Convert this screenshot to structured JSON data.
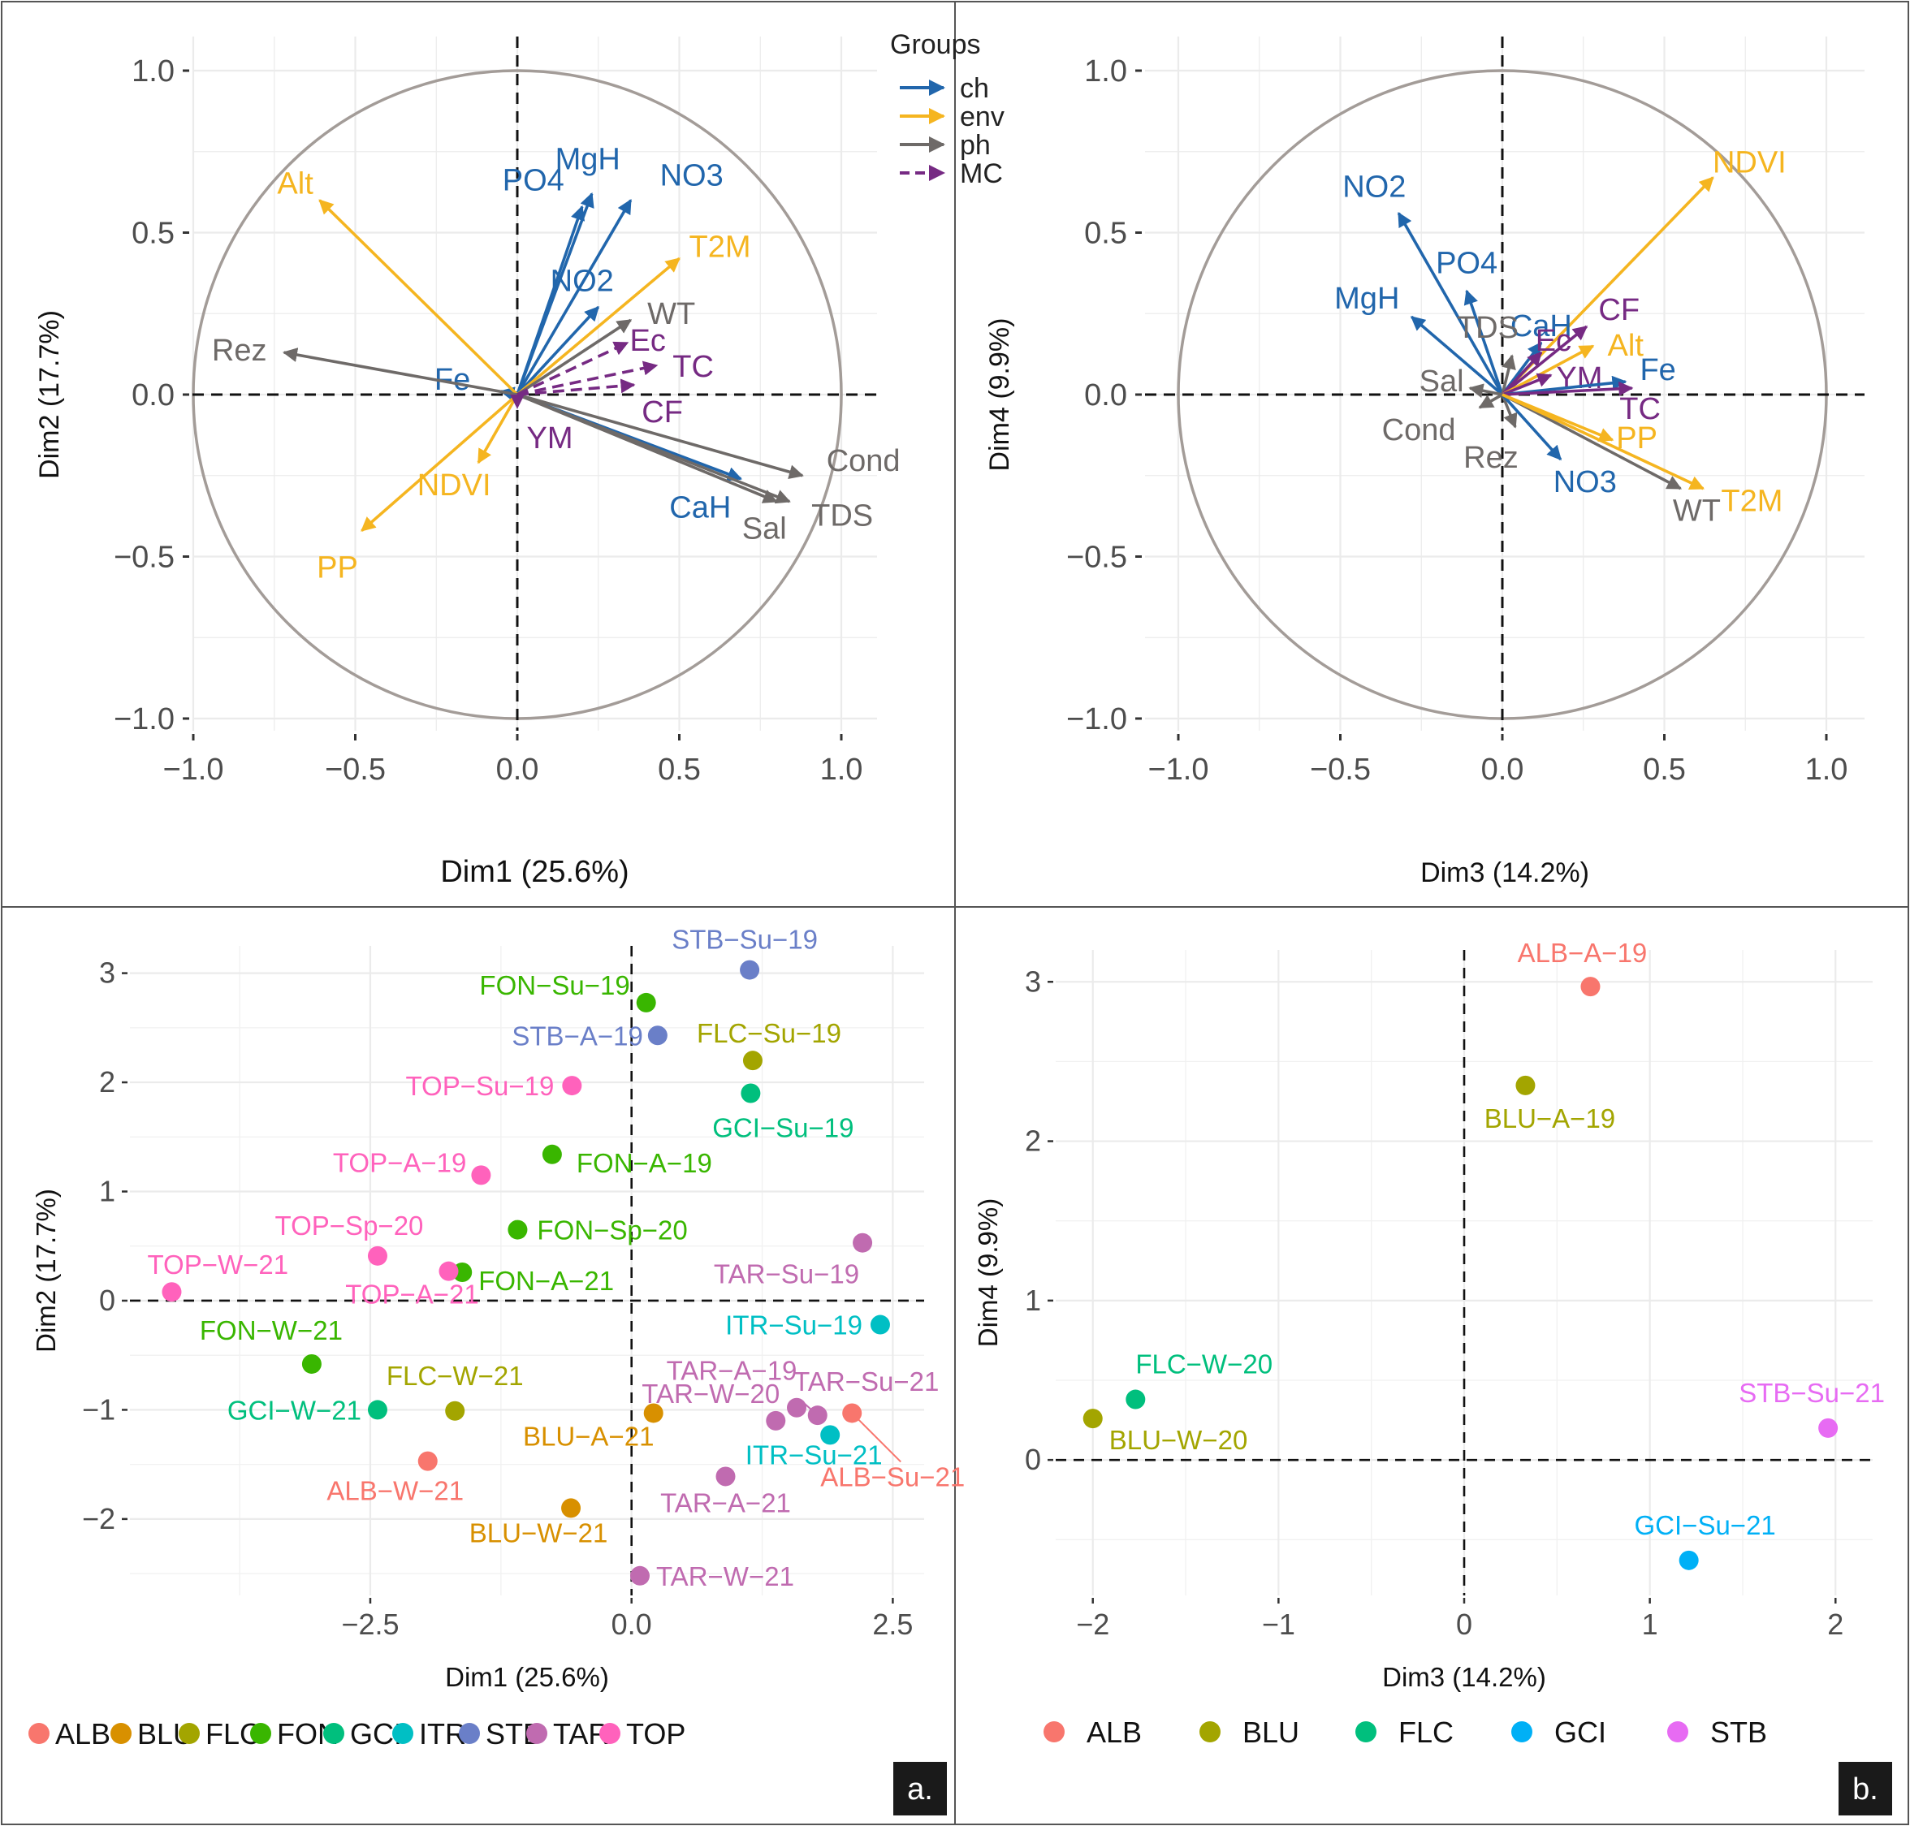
{
  "panel_tags": [
    "a.",
    "b."
  ],
  "chart_data": [
    {
      "id": "corr-dim1-dim2",
      "type": "scatter",
      "subtype": "correlation-circle",
      "xlabel": "Dim1 (25.6%)",
      "ylabel": "Dim2 (17.7%)",
      "xlim": [
        -1.0,
        1.0
      ],
      "ylim": [
        -1.0,
        1.0
      ],
      "xticks": [
        "−1.0",
        "−0.5",
        "0.0",
        "0.5",
        "1.0"
      ],
      "xtick_values": [
        -1.0,
        -0.5,
        0.0,
        0.5,
        1.0
      ],
      "yticks": [
        "1.0",
        "0.5",
        "0.0",
        "−0.5",
        "−1.0"
      ],
      "ytick_values": [
        1.0,
        0.5,
        0.0,
        -0.5,
        -1.0
      ],
      "legend": {
        "title": "Groups",
        "entries": [
          {
            "label": "ch",
            "color": "#2166ac",
            "style": "solid"
          },
          {
            "label": "env",
            "color": "#f5b520",
            "style": "solid"
          },
          {
            "label": "ph",
            "color": "#6e6a68",
            "style": "solid"
          },
          {
            "label": "MC",
            "color": "#762a83",
            "style": "dashed"
          }
        ]
      },
      "vectors": [
        {
          "label": "MgH",
          "group": "ch",
          "x": 0.23,
          "y": 0.62
        },
        {
          "label": "PO4",
          "group": "ch",
          "x": 0.2,
          "y": 0.58
        },
        {
          "label": "NO3",
          "group": "ch",
          "x": 0.35,
          "y": 0.6
        },
        {
          "label": "NO2",
          "group": "ch",
          "x": 0.25,
          "y": 0.27
        },
        {
          "label": "Fe",
          "group": "ch",
          "x": -0.05,
          "y": 0.01
        },
        {
          "label": "CaH",
          "group": "ch",
          "x": 0.69,
          "y": -0.26
        },
        {
          "label": "Alt",
          "group": "env",
          "x": -0.61,
          "y": 0.6
        },
        {
          "label": "T2M",
          "group": "env",
          "x": 0.5,
          "y": 0.42
        },
        {
          "label": "NDVI",
          "group": "env",
          "x": -0.12,
          "y": -0.21
        },
        {
          "label": "PP",
          "group": "env",
          "x": -0.48,
          "y": -0.42
        },
        {
          "label": "Rez",
          "group": "ph",
          "x": -0.72,
          "y": 0.13
        },
        {
          "label": "WT",
          "group": "ph",
          "x": 0.35,
          "y": 0.23
        },
        {
          "label": "Cond",
          "group": "ph",
          "x": 0.88,
          "y": -0.25
        },
        {
          "label": "TDS",
          "group": "ph",
          "x": 0.84,
          "y": -0.33
        },
        {
          "label": "Sal",
          "group": "ph",
          "x": 0.8,
          "y": -0.33
        },
        {
          "label": "Ec",
          "group": "MC",
          "x": 0.34,
          "y": 0.16
        },
        {
          "label": "TC",
          "group": "MC",
          "x": 0.43,
          "y": 0.09
        },
        {
          "label": "CF",
          "group": "MC",
          "x": 0.36,
          "y": 0.03
        },
        {
          "label": "YM",
          "group": "MC",
          "x": 0.0,
          "y": -0.04
        }
      ]
    },
    {
      "id": "corr-dim3-dim4",
      "type": "scatter",
      "subtype": "correlation-circle",
      "xlabel": "Dim3 (14.2%)",
      "ylabel": "Dim4 (9.9%)",
      "xlim": [
        -1.0,
        1.0
      ],
      "ylim": [
        -1.0,
        1.0
      ],
      "xticks": [
        "−1.0",
        "−0.5",
        "0.0",
        "0.5",
        "1.0"
      ],
      "xtick_values": [
        -1.0,
        -0.5,
        0.0,
        0.5,
        1.0
      ],
      "yticks": [
        "1.0",
        "0.5",
        "0.0",
        "−0.5",
        "−1.0"
      ],
      "ytick_values": [
        1.0,
        0.5,
        0.0,
        -0.5,
        -1.0
      ],
      "vectors": [
        {
          "label": "NDVI",
          "group": "env",
          "x": 0.65,
          "y": 0.67
        },
        {
          "label": "NO2",
          "group": "ch",
          "x": -0.32,
          "y": 0.56
        },
        {
          "label": "PO4",
          "group": "ch",
          "x": -0.11,
          "y": 0.32
        },
        {
          "label": "MgH",
          "group": "ch",
          "x": -0.28,
          "y": 0.24
        },
        {
          "label": "CaH",
          "group": "ch",
          "x": 0.12,
          "y": 0.16
        },
        {
          "label": "CF",
          "group": "MC",
          "x": 0.26,
          "y": 0.21
        },
        {
          "label": "TDS",
          "group": "ph",
          "x": 0.03,
          "y": 0.12
        },
        {
          "label": "Ec",
          "group": "MC",
          "x": 0.12,
          "y": 0.13
        },
        {
          "label": "Alt",
          "group": "env",
          "x": 0.28,
          "y": 0.15
        },
        {
          "label": "YM",
          "group": "MC",
          "x": 0.15,
          "y": 0.06
        },
        {
          "label": "Fe",
          "group": "ch",
          "x": 0.38,
          "y": 0.04
        },
        {
          "label": "Sal",
          "group": "ph",
          "x": -0.1,
          "y": 0.02
        },
        {
          "label": "Cond",
          "group": "ph",
          "x": -0.07,
          "y": -0.04
        },
        {
          "label": "Rez",
          "group": "ph",
          "x": 0.04,
          "y": -0.1
        },
        {
          "label": "TC",
          "group": "MC",
          "x": 0.4,
          "y": 0.02
        },
        {
          "label": "NO3",
          "group": "ch",
          "x": 0.18,
          "y": -0.2
        },
        {
          "label": "PP",
          "group": "env",
          "x": 0.34,
          "y": -0.14
        },
        {
          "label": "WT",
          "group": "ph",
          "x": 0.55,
          "y": -0.29
        },
        {
          "label": "T2M",
          "group": "env",
          "x": 0.62,
          "y": -0.29
        }
      ]
    },
    {
      "id": "ind-dim1-dim2",
      "type": "scatter",
      "xlabel": "Dim1 (25.6%)",
      "ylabel": "Dim2 (17.7%)",
      "xlim": [
        -4.8,
        2.8
      ],
      "ylim": [
        -2.7,
        3.25
      ],
      "xticks": [
        "−2.5",
        "0.0",
        "2.5"
      ],
      "xtick_values": [
        -2.5,
        0.0,
        2.5
      ],
      "yticks": [
        "3",
        "2",
        "1",
        "0",
        "−1",
        "−2"
      ],
      "ytick_values": [
        3,
        2,
        1,
        0,
        -1,
        -2
      ],
      "legend": [
        {
          "label": "ALB",
          "color": "#f8766d"
        },
        {
          "label": "BLU",
          "color": "#d89000"
        },
        {
          "label": "FLC",
          "color": "#a3a500"
        },
        {
          "label": "FON",
          "color": "#39b600"
        },
        {
          "label": "GCI",
          "color": "#00bf7d"
        },
        {
          "label": "ITR",
          "color": "#00bfc4"
        },
        {
          "label": "STB",
          "color": "#6a7fc8"
        },
        {
          "label": "TAR",
          "color": "#c06bb0"
        },
        {
          "label": "TOP",
          "color": "#ff62bc"
        }
      ],
      "points": [
        {
          "label": "STB−Su−19",
          "group": "STB",
          "x": 1.13,
          "y": 3.03
        },
        {
          "label": "FON−Su−19",
          "group": "FON",
          "x": 0.14,
          "y": 2.73
        },
        {
          "label": "STB−A−19",
          "group": "STB",
          "x": 0.25,
          "y": 2.43
        },
        {
          "label": "FLC−Su−19",
          "group": "FLC",
          "x": 1.16,
          "y": 2.2
        },
        {
          "label": "TOP−Su−19",
          "group": "TOP",
          "x": -0.57,
          "y": 1.97
        },
        {
          "label": "GCI−Su−19",
          "group": "GCI",
          "x": 1.14,
          "y": 1.9
        },
        {
          "label": "FON−A−19",
          "group": "FON",
          "x": -0.76,
          "y": 1.34
        },
        {
          "label": "TOP−A−19",
          "group": "TOP",
          "x": -1.44,
          "y": 1.15
        },
        {
          "label": "FON−Sp−20",
          "group": "FON",
          "x": -1.09,
          "y": 0.65
        },
        {
          "label": "TAR−Su−19",
          "group": "TAR",
          "x": 2.21,
          "y": 0.53
        },
        {
          "label": "TOP−Sp−20",
          "group": "TOP",
          "x": -2.43,
          "y": 0.41
        },
        {
          "label": "FON−A−21",
          "group": "FON",
          "x": -1.62,
          "y": 0.26
        },
        {
          "label": "TOP−A−21",
          "group": "TOP",
          "x": -1.75,
          "y": 0.27
        },
        {
          "label": "TOP−W−21",
          "group": "TOP",
          "x": -4.4,
          "y": 0.08
        },
        {
          "label": "ITR−Su−19",
          "group": "ITR",
          "x": 2.38,
          "y": -0.22
        },
        {
          "label": "FON−W−21",
          "group": "FON",
          "x": -3.06,
          "y": -0.58
        },
        {
          "label": "GCI−W−21",
          "group": "GCI",
          "x": -2.43,
          "y": -1.0
        },
        {
          "label": "FLC−W−21",
          "group": "FLC",
          "x": -1.69,
          "y": -1.01
        },
        {
          "label": "BLU−A−21",
          "group": "BLU",
          "x": 0.21,
          "y": -1.03
        },
        {
          "label": "TAR−A−19",
          "group": "TAR",
          "x": 1.58,
          "y": -0.98
        },
        {
          "label": "TAR−W−20",
          "group": "TAR",
          "x": 1.38,
          "y": -1.1
        },
        {
          "label": "TAR−Su−21",
          "group": "TAR",
          "x": 1.78,
          "y": -1.05
        },
        {
          "label": "ALB−Su−21",
          "group": "ALB",
          "x": 2.11,
          "y": -1.03
        },
        {
          "label": "ITR−Su−21",
          "group": "ITR",
          "x": 1.9,
          "y": -1.23
        },
        {
          "label": "ALB−W−21",
          "group": "ALB",
          "x": -1.95,
          "y": -1.47
        },
        {
          "label": "TAR−A−21",
          "group": "TAR",
          "x": 0.9,
          "y": -1.61
        },
        {
          "label": "BLU−W−21",
          "group": "BLU",
          "x": -0.58,
          "y": -1.9
        },
        {
          "label": "TAR−W−21",
          "group": "TAR",
          "x": 0.08,
          "y": -2.52
        }
      ]
    },
    {
      "id": "ind-dim3-dim4",
      "type": "scatter",
      "xlabel": "Dim3 (14.2%)",
      "ylabel": "Dim4 (9.9%)",
      "xlim": [
        -2.2,
        2.2
      ],
      "ylim": [
        -0.85,
        3.2
      ],
      "xticks": [
        "−2",
        "−1",
        "0",
        "1",
        "2"
      ],
      "xtick_values": [
        -2,
        -1,
        0,
        1,
        2
      ],
      "yticks": [
        "3",
        "2",
        "1",
        "0"
      ],
      "ytick_values": [
        3,
        2,
        1,
        0
      ],
      "legend": [
        {
          "label": "ALB",
          "color": "#f8766d"
        },
        {
          "label": "BLU",
          "color": "#a3a500"
        },
        {
          "label": "FLC",
          "color": "#00bf7d"
        },
        {
          "label": "GCI",
          "color": "#00b0f6"
        },
        {
          "label": "STB",
          "color": "#e76bf3"
        }
      ],
      "points": [
        {
          "label": "ALB−A−19",
          "group": "ALB",
          "x": 0.68,
          "y": 2.97
        },
        {
          "label": "BLU−A−19",
          "group": "BLU",
          "x": 0.33,
          "y": 2.35
        },
        {
          "label": "FLC−W−20",
          "group": "FLC",
          "x": -1.77,
          "y": 0.38
        },
        {
          "label": "BLU−W−20",
          "group": "BLU",
          "x": -2.0,
          "y": 0.26
        },
        {
          "label": "STB−Su−21",
          "group": "STB",
          "x": 1.96,
          "y": 0.2
        },
        {
          "label": "GCI−Su−21",
          "group": "GCI",
          "x": 1.21,
          "y": -0.63
        }
      ]
    }
  ]
}
